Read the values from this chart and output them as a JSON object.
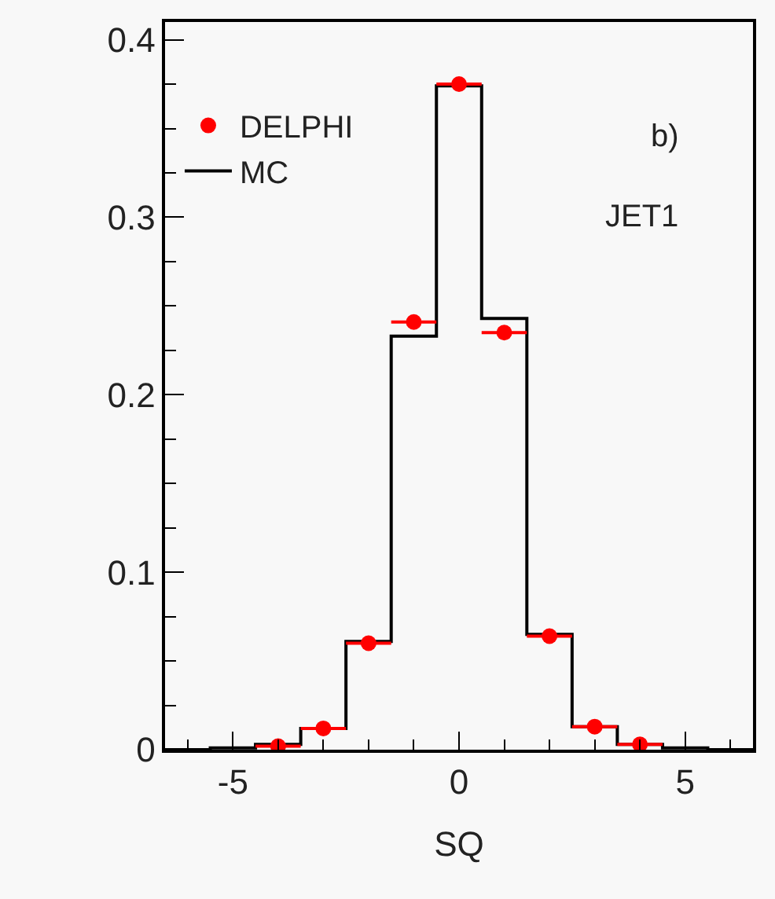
{
  "chart_data": {
    "type": "histogram",
    "xlabel": "SQ",
    "annotations": [
      "b)",
      "JET1"
    ],
    "bins": [
      -6.5,
      -5.5,
      -4.5,
      -3.5,
      -2.5,
      -1.5,
      -0.5,
      0.5,
      1.5,
      2.5,
      3.5,
      4.5,
      5.5,
      6.5
    ],
    "series": [
      {
        "name": "DELPHI",
        "type": "scatter",
        "color": "#ff0000",
        "x": [
          -4,
          -3,
          -2,
          -1,
          0,
          1,
          2,
          3,
          4
        ],
        "values": [
          0.002,
          0.012,
          0.06,
          0.241,
          0.375,
          0.235,
          0.064,
          0.013,
          0.003
        ],
        "xerrors": [
          0.5,
          0.5,
          0.5,
          0.5,
          0.5,
          0.5,
          0.5,
          0.5,
          0.5
        ]
      },
      {
        "name": "MC",
        "color": "#000000",
        "values": [
          0,
          0.001,
          0.003,
          0.012,
          0.061,
          0.233,
          0.374,
          0.243,
          0.065,
          0.013,
          0.003,
          0.001,
          0
        ]
      }
    ],
    "xlim": [
      -6.5,
      6.5
    ],
    "xticks": [
      -5,
      0,
      5
    ],
    "ylim": [
      0,
      0.41
    ],
    "yticks": [
      0,
      0.1,
      0.2,
      0.3,
      0.4
    ],
    "legend": "top left",
    "grid": false,
    "marker": "circle"
  }
}
